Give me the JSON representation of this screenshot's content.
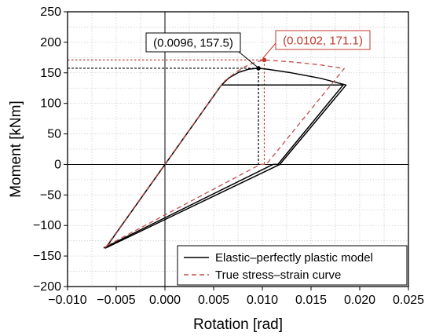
{
  "chart_data": {
    "type": "line",
    "xlabel": "Rotation [rad]",
    "ylabel": "Moment [kNm]",
    "xlim": [
      -0.01,
      0.025
    ],
    "ylim": [
      -200,
      250
    ],
    "xticks": [
      -0.01,
      -0.005,
      0.0,
      0.005,
      0.01,
      0.015,
      0.02,
      0.025
    ],
    "xtick_labels": [
      "−0.010",
      "−0.005",
      "0.000",
      "0.005",
      "0.010",
      "0.015",
      "0.020",
      "0.025"
    ],
    "yticks": [
      -200,
      -150,
      -100,
      -50,
      0,
      50,
      100,
      150,
      200,
      250
    ],
    "ytick_labels": [
      "−200",
      "−150",
      "−100",
      "−50",
      "0",
      "50",
      "100",
      "150",
      "200",
      "250"
    ],
    "grid": true,
    "legend_position": "bottom-right",
    "series": [
      {
        "name": "Elastic–perfectly plastic model",
        "color": "#000000",
        "dash": "solid",
        "points": [
          [
            -0.0061,
            -137
          ],
          [
            0.0058,
            130
          ],
          [
            0.0066,
            142
          ],
          [
            0.0076,
            151
          ],
          [
            0.0086,
            156
          ],
          [
            0.0096,
            157.5
          ],
          [
            0.0105,
            156
          ],
          [
            0.013,
            150
          ],
          [
            0.016,
            141
          ],
          [
            0.0186,
            130
          ],
          [
            0.0118,
            0
          ],
          [
            0.0118,
            0
          ],
          [
            -0.0061,
            -137
          ],
          [
            0.0058,
            130
          ],
          [
            0.0183,
            130
          ],
          [
            0.0116,
            0
          ],
          [
            0.0111,
            0
          ],
          [
            -0.0063,
            -137
          ]
        ]
      },
      {
        "name": "True stress–strain curve",
        "color": "#c0504d",
        "dash": "dashed",
        "points": [
          [
            -0.0061,
            -136
          ],
          [
            0.006,
            135
          ],
          [
            0.0072,
            150
          ],
          [
            0.0082,
            160
          ],
          [
            0.0092,
            167
          ],
          [
            0.0102,
            171.1
          ],
          [
            0.013,
            168
          ],
          [
            0.016,
            163
          ],
          [
            0.0184,
            157
          ],
          [
            0.0104,
            0
          ],
          [
            0.0098,
            0
          ],
          [
            -0.0063,
            -136
          ]
        ]
      }
    ],
    "annotations": [
      {
        "text": "(0.0096, 157.5)",
        "x": 0.0096,
        "y": 157.5,
        "color": "#000000",
        "box_border": "#000000",
        "dash": "dotted-black"
      },
      {
        "text": "(0.0102, 171.1)",
        "x": 0.0102,
        "y": 171.1,
        "color": "#c0392b",
        "box_border": "#c0392b",
        "dash": "dotted-red"
      }
    ]
  }
}
